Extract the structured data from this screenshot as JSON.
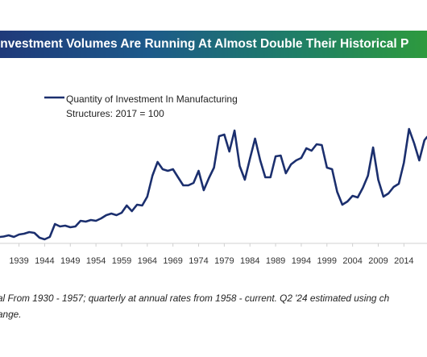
{
  "banner": {
    "title": "Investment Volumes Are Running At Almost Double Their Historical P",
    "background_gradient": [
      "#1f3a7a",
      "#1d5a8a",
      "#1f7f66",
      "#2e9a3e"
    ]
  },
  "footnote": {
    "line1": "al From 1930 - 1957; quarterly at annual rates from 1958 - current. Q2 '24 estimated using ch",
    "line2": "ange."
  },
  "chart_data": {
    "type": "line",
    "xlim": [
      1935.3,
      2018.5
    ],
    "ylim": [
      0,
      160
    ],
    "grid": false,
    "legend_placement": "top-left",
    "x_ticks": [
      1939,
      1944,
      1949,
      1954,
      1959,
      1964,
      1969,
      1974,
      1979,
      1984,
      1989,
      1994,
      1999,
      2004,
      2009,
      2014
    ],
    "x_tick_labels": [
      "1939",
      "1944",
      "1949",
      "1954",
      "1959",
      "1964",
      "1969",
      "1974",
      "1979",
      "1984",
      "1989",
      "1994",
      "1999",
      "2004",
      "2009",
      "2014"
    ],
    "series": [
      {
        "name": "Quantity of Investment In Manufacturing Structures: 2017 = 100",
        "color": "#1b2f6e",
        "x": [
          1935.3,
          1936,
          1937,
          1938,
          1939,
          1940,
          1941,
          1942,
          1943,
          1944,
          1945,
          1946,
          1947,
          1948,
          1949,
          1950,
          1951,
          1952,
          1953,
          1954,
          1955,
          1956,
          1957,
          1958,
          1959,
          1960,
          1961,
          1962,
          1963,
          1964,
          1965,
          1966,
          1967,
          1968,
          1969,
          1970,
          1971,
          1972,
          1973,
          1974,
          1975,
          1976,
          1977,
          1978,
          1979,
          1980,
          1981,
          1982,
          1983,
          1984,
          1985,
          1986,
          1987,
          1988,
          1989,
          1990,
          1991,
          1992,
          1993,
          1994,
          1995,
          1996,
          1997,
          1998,
          1999,
          2000,
          2001,
          2002,
          2003,
          2004,
          2005,
          2006,
          2007,
          2008,
          2009,
          2010,
          2011,
          2012,
          2013,
          2014,
          2015,
          2016,
          2017,
          2018,
          2018.5
        ],
        "values": [
          6,
          6.5,
          8,
          6,
          9,
          10,
          12,
          11,
          5,
          3,
          6,
          22,
          19,
          20,
          18,
          19,
          26,
          25,
          27,
          26,
          29,
          33,
          35,
          33,
          36,
          45,
          38,
          46,
          45,
          56,
          82,
          99,
          90,
          88,
          90,
          80,
          70,
          70,
          73,
          88,
          64,
          79,
          92,
          131,
          133,
          112,
          138,
          94,
          77,
          103,
          128,
          101,
          80,
          80,
          106,
          107,
          85,
          96,
          101,
          104,
          116,
          113,
          121,
          120,
          92,
          90,
          62,
          46,
          50,
          57,
          55,
          67,
          82,
          117,
          77,
          56,
          60,
          68,
          72,
          98,
          140,
          122,
          101,
          126,
          130
        ]
      }
    ]
  }
}
